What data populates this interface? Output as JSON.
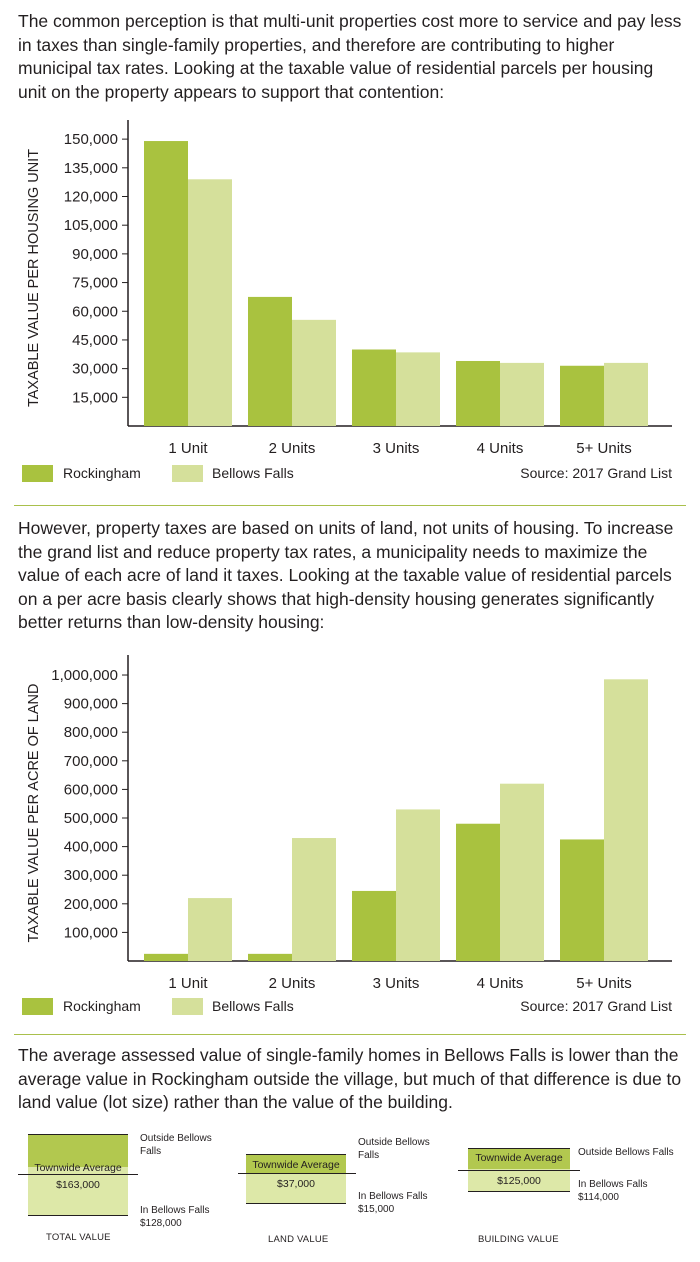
{
  "intro": {
    "paragraph1": "The common perception is that multi-unit properties cost more to service and pay less in taxes than single-family properties, and therefore are contributing to higher municipal tax rates. Looking at the taxable value of residential parcels per housing unit on the property appears to support that contention:",
    "paragraph2": "However, property taxes are based on units of land, not units of housing. To increase the grand list and reduce property tax rates, a municipality needs to maximize the value of each acre of land it taxes. Looking at the taxable value of residential parcels on a per acre basis clearly shows that high-density housing generates significantly better returns than low-density housing:",
    "paragraph3": "The average assessed value of single-family homes in Bellows Falls is lower than the average value in Rockingham outside the village, but much of that difference is due to land value (lot size) rather than the value of the building."
  },
  "colors": {
    "rockingham": "#a9c23f",
    "bellows_falls": "#d5e09b",
    "axis": "#231f20",
    "rule": "#a9c04c"
  },
  "chart_data": [
    {
      "type": "bar",
      "ylabel": "TAXABLE VALUE PER HOUSING UNIT",
      "xlabel": "",
      "categories": [
        "1 Unit",
        "2 Units",
        "3 Units",
        "4 Units",
        "5+ Units"
      ],
      "series": [
        {
          "name": "Rockingham",
          "values": [
            149000,
            67500,
            40000,
            34000,
            31500
          ]
        },
        {
          "name": "Bellows Falls",
          "values": [
            129000,
            55500,
            38500,
            33000,
            33000
          ]
        }
      ],
      "ylim": [
        0,
        160000
      ],
      "yticks": [
        15000,
        30000,
        45000,
        60000,
        75000,
        90000,
        105000,
        120000,
        135000,
        150000
      ],
      "yticklabels": [
        "15,000",
        "30,000",
        "45,000",
        "60,000",
        "75,000",
        "90,000",
        "105,000",
        "120,000",
        "135,000",
        "150,000"
      ],
      "grid": false,
      "legend": "bottom-left",
      "source": "Source: 2017 Grand List"
    },
    {
      "type": "bar",
      "ylabel": "TAXABLE VALUE PER ACRE OF LAND",
      "xlabel": "",
      "categories": [
        "1 Unit",
        "2 Units",
        "3 Units",
        "4 Units",
        "5+ Units"
      ],
      "series": [
        {
          "name": "Rockingham",
          "values": [
            25000,
            25000,
            245000,
            480000,
            425000
          ]
        },
        {
          "name": "Bellows Falls",
          "values": [
            220000,
            430000,
            530000,
            620000,
            985000
          ]
        }
      ],
      "ylim": [
        0,
        1070000
      ],
      "yticks": [
        100000,
        200000,
        300000,
        400000,
        500000,
        600000,
        700000,
        800000,
        900000,
        1000000
      ],
      "yticklabels": [
        "100,000",
        "200,000",
        "300,000",
        "400,000",
        "500,000",
        "600,000",
        "700,000",
        "800,000",
        "900,000",
        "1,000,000"
      ],
      "grid": false,
      "legend": "bottom-left",
      "source": "Source: 2017 Grand List"
    }
  ],
  "legend": {
    "rockingham": "Rockingham",
    "bellows_falls": "Bellows Falls",
    "source": "Source: 2017 Grand List"
  },
  "comparison": [
    {
      "title": "TOTAL VALUE",
      "townwide_label": "Townwide Average",
      "townwide_value": "$163,000",
      "outside_label": "Outside Bellows Falls",
      "inside_label": "In Bellows Falls",
      "inside_value": "$128,000"
    },
    {
      "title": "LAND VALUE",
      "townwide_label": "Townwide Average",
      "townwide_value": "$37,000",
      "outside_label": "Outside Bellows Falls",
      "inside_label": "In Bellows Falls",
      "inside_value": "$15,000"
    },
    {
      "title": "BUILDING VALUE",
      "townwide_label": "Townwide Average",
      "townwide_value": "$125,000",
      "outside_label": "Outside Bellows Falls",
      "inside_label": "In Bellows Falls",
      "inside_value": "$114,000"
    }
  ]
}
